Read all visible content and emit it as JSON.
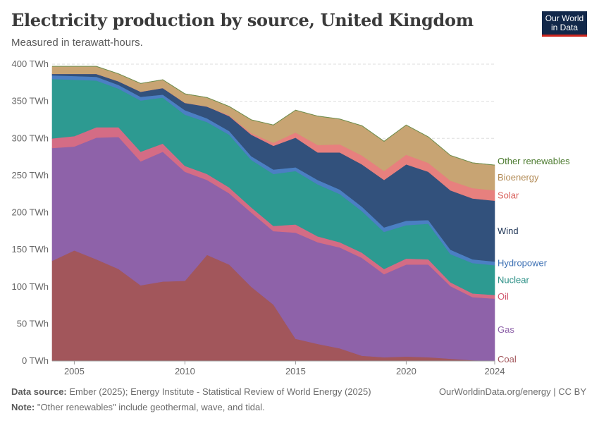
{
  "title": "Electricity production by source, United Kingdom",
  "subtitle": "Measured in terawatt-hours.",
  "logo": {
    "line1": "Our World",
    "line2": "in Data"
  },
  "footer": {
    "source_label": "Data source:",
    "source_text": " Ember (2025); Energy Institute - Statistical Review of World Energy (2025)",
    "note_label": "Note:",
    "note_text": " \"Other renewables\" include geothermal, wave, and tidal.",
    "credit": "OurWorldinData.org/energy | CC BY"
  },
  "chart_data": {
    "type": "area",
    "stacked": true,
    "x": [
      2004,
      2005,
      2006,
      2007,
      2008,
      2009,
      2010,
      2011,
      2012,
      2013,
      2014,
      2015,
      2016,
      2017,
      2018,
      2019,
      2020,
      2021,
      2022,
      2023,
      2024
    ],
    "xticks": [
      2005,
      2010,
      2015,
      2020,
      2024
    ],
    "ylim": [
      0,
      400
    ],
    "yticks": [
      {
        "value": 0,
        "label": "0 TWh"
      },
      {
        "value": 50,
        "label": "50 TWh"
      },
      {
        "value": 100,
        "label": "100 TWh"
      },
      {
        "value": 150,
        "label": "150 TWh"
      },
      {
        "value": 200,
        "label": "200 TWh"
      },
      {
        "value": 250,
        "label": "250 TWh"
      },
      {
        "value": 300,
        "label": "300 TWh"
      },
      {
        "value": 350,
        "label": "350 TWh"
      },
      {
        "value": 400,
        "label": "400 TWh"
      }
    ],
    "grid": true,
    "legend": "right",
    "series": [
      {
        "name": "Coal",
        "color": "#a2565b",
        "label_color": "#a2565b",
        "values": [
          135,
          149,
          137,
          124,
          102,
          107,
          108,
          143,
          130,
          100,
          76,
          30,
          23,
          17,
          7,
          5,
          6,
          5,
          3,
          1,
          0
        ]
      },
      {
        "name": "Gas",
        "color": "#8e62a9",
        "label_color": "#8e62a9",
        "values": [
          152,
          140,
          164,
          178,
          167,
          175,
          147,
          101,
          96,
          100,
          99,
          143,
          137,
          136,
          132,
          112,
          124,
          125,
          98,
          85,
          84
        ]
      },
      {
        "name": "Oil",
        "color": "#d46c85",
        "label_color": "#d0566d",
        "values": [
          13,
          14,
          14,
          13,
          13,
          11,
          8,
          8,
          8,
          7,
          7,
          11,
          8,
          7,
          7,
          7,
          8,
          7,
          5,
          5,
          5
        ]
      },
      {
        "name": "Nuclear",
        "color": "#2d9a91",
        "label_color": "#2a8f85",
        "values": [
          80,
          76,
          63,
          52,
          69,
          62,
          69,
          70,
          71,
          64,
          70,
          72,
          70,
          65,
          56,
          50,
          45,
          48,
          38,
          41,
          40
        ]
      },
      {
        "name": "Hydropower",
        "color": "#4b7fc3",
        "label_color": "#3b6fb3",
        "values": [
          5,
          5,
          5,
          5,
          5,
          4,
          6,
          5,
          5,
          5,
          6,
          5,
          6,
          6,
          6,
          6,
          6,
          5,
          6,
          5,
          5
        ]
      },
      {
        "name": "Wind",
        "color": "#32517c",
        "label_color": "#1f3556",
        "values": [
          2,
          3,
          4,
          5,
          7,
          9,
          10,
          16,
          20,
          29,
          32,
          40,
          37,
          50,
          57,
          64,
          76,
          65,
          80,
          82,
          82
        ]
      },
      {
        "name": "Solar",
        "color": "#e7807e",
        "label_color": "#d9625d",
        "values": [
          0,
          0,
          0,
          0,
          0,
          0,
          0,
          0,
          1,
          2,
          4,
          7,
          10,
          11,
          12,
          12,
          13,
          12,
          13,
          14,
          14
        ]
      },
      {
        "name": "Bioenergy",
        "color": "#c8a473",
        "label_color": "#b28a55",
        "values": [
          10,
          10,
          10,
          10,
          11,
          11,
          12,
          12,
          12,
          18,
          24,
          30,
          39,
          34,
          40,
          40,
          40,
          35,
          34,
          34,
          34
        ]
      },
      {
        "name": "Other renewables",
        "color": "#6d8f4f",
        "label_color": "#4b7a2e",
        "values": [
          0,
          0,
          0,
          0,
          0,
          0,
          0,
          0,
          0,
          0,
          0,
          0,
          0,
          0,
          0,
          0,
          0,
          0,
          0,
          0,
          0
        ]
      }
    ]
  }
}
